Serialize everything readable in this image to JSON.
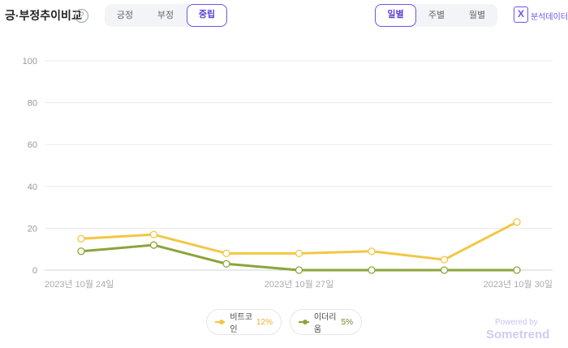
{
  "header": {
    "title": "긍·부정추이비교",
    "help_icon": "?",
    "sentiment_tabs": [
      "긍정",
      "부정",
      "중립"
    ],
    "active_sentiment": "중립",
    "period_tabs": [
      "일별",
      "주별",
      "월별"
    ],
    "active_period": "일별",
    "export_label": "분석데이터",
    "export_icon": "X"
  },
  "chart_data": {
    "type": "line",
    "x": [
      "2023-10-24",
      "2023-10-25",
      "2023-10-26",
      "2023-10-27",
      "2023-10-28",
      "2023-10-29",
      "2023-10-30"
    ],
    "x_tick_labels": [
      {
        "index": 0,
        "label": "2023년 10월 24일"
      },
      {
        "index": 3,
        "label": "2023년 10월 27일"
      },
      {
        "index": 6,
        "label": "2023년 10월 30일"
      }
    ],
    "ylim": [
      0,
      100
    ],
    "y_ticks": [
      "0",
      "20",
      "40",
      "60",
      "80",
      "100"
    ],
    "grid": true,
    "legend_placement": "bottom-center",
    "series": [
      {
        "name": "비트코인",
        "percent": "12%",
        "color": "#f2c744",
        "values": [
          15,
          17,
          8,
          8,
          9,
          5,
          23
        ]
      },
      {
        "name": "이더리움",
        "percent": "5%",
        "color": "#8ca43a",
        "values": [
          9,
          12,
          3,
          0,
          0,
          0,
          0
        ]
      }
    ]
  },
  "footer": {
    "powered_by": "Powered by",
    "brand": "Sometrend"
  }
}
